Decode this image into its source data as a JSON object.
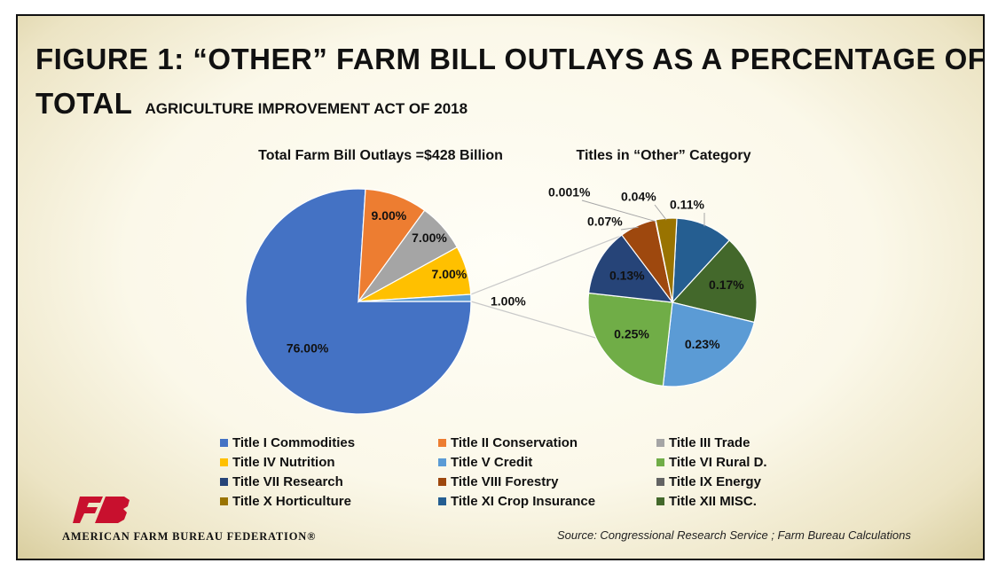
{
  "title": {
    "line1": "FIGURE  1: “OTHER” FARM BILL OUTLAYS AS A PERCENTAGE OF",
    "line2_big": "TOTAL",
    "line2_small": "AGRICULTURE IMPROVEMENT ACT OF 2018"
  },
  "chart_data": [
    {
      "type": "pie",
      "title": "Total Farm Bill Outlays =$428 Billion",
      "slices": [
        {
          "name": "Title I Commodities",
          "value": 76.0,
          "label": "76.00%",
          "color": "#4472C4"
        },
        {
          "name": "Title II Conservation",
          "value": 9.0,
          "label": "9.00%",
          "color": "#ED7D31"
        },
        {
          "name": "Title III Trade",
          "value": 7.0,
          "label": "7.00%",
          "color": "#A5A5A5"
        },
        {
          "name": "Title IV Nutrition",
          "value": 7.0,
          "label": "7.00%",
          "color": "#FFC000"
        },
        {
          "name": "Other",
          "value": 1.0,
          "label": "1.00%",
          "color": "#5B9BD5"
        }
      ]
    },
    {
      "type": "pie",
      "title": "Titles in “Other” Category",
      "slices": [
        {
          "name": "Title XI Crop Insurance",
          "value": 0.11,
          "label": "0.11%",
          "color": "#255E91"
        },
        {
          "name": "Title XII MISC.",
          "value": 0.17,
          "label": "0.17%",
          "color": "#43682B"
        },
        {
          "name": "Title V Credit",
          "value": 0.23,
          "label": "0.23%",
          "color": "#5B9BD5"
        },
        {
          "name": "Title VI Rural D.",
          "value": 0.25,
          "label": "0.25%",
          "color": "#70AD47"
        },
        {
          "name": "Title VII Research",
          "value": 0.13,
          "label": "0.13%",
          "color": "#264478"
        },
        {
          "name": "Title VIII Forestry",
          "value": 0.07,
          "label": "0.07%",
          "color": "#9E480E"
        },
        {
          "name": "Title IX Energy",
          "value": 0.001,
          "label": "0.001%",
          "color": "#636363"
        },
        {
          "name": "Title X Horticulture",
          "value": 0.04,
          "label": "0.04%",
          "color": "#997300"
        }
      ]
    }
  ],
  "legend": [
    {
      "label": "Title I Commodities",
      "color": "#4472C4"
    },
    {
      "label": "Title II Conservation",
      "color": "#ED7D31"
    },
    {
      "label": "Title III Trade",
      "color": "#A5A5A5"
    },
    {
      "label": "Title IV Nutrition",
      "color": "#FFC000"
    },
    {
      "label": "Title V Credit",
      "color": "#5B9BD5"
    },
    {
      "label": "Title VI Rural D.",
      "color": "#70AD47"
    },
    {
      "label": "Title VII Research",
      "color": "#264478"
    },
    {
      "label": "Title VIII Forestry",
      "color": "#9E480E"
    },
    {
      "label": "Title IX Energy",
      "color": "#636363"
    },
    {
      "label": "Title X Horticulture",
      "color": "#997300"
    },
    {
      "label": "Title XI Crop Insurance",
      "color": "#255E91"
    },
    {
      "label": "Title XII MISC.",
      "color": "#43682B"
    }
  ],
  "logo": {
    "text": "AMERICAN FARM BUREAU FEDERATION®",
    "mark_color": "#C8102E"
  },
  "source": "Source: Congressional Research Service ; Farm Bureau Calculations"
}
